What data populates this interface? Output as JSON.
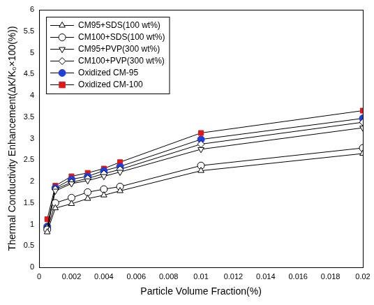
{
  "chart_data": {
    "type": "line",
    "x_label": "Particle Volume Fraction(%)",
    "y_label": "Thermal Conductivity Enhancement(ΔK/K₀×100(%))",
    "x": [
      0.0005,
      0.001,
      0.002,
      0.003,
      0.004,
      0.005,
      0.01,
      0.02
    ],
    "series": [
      {
        "name": "CM95+SDS(100 wt%)",
        "color": "#000000",
        "marker": "open_triangle",
        "values": [
          0.82,
          1.38,
          1.48,
          1.6,
          1.68,
          1.78,
          2.25,
          2.65
        ]
      },
      {
        "name": "CM100+SDS(100 wt%)",
        "color": "#000000",
        "marker": "open_circle",
        "values": [
          0.88,
          1.5,
          1.62,
          1.75,
          1.82,
          1.88,
          2.37,
          2.78
        ]
      },
      {
        "name": "CM95+PVP(300 wt%)",
        "color": "#000000",
        "marker": "open_triangle_down",
        "values": [
          0.9,
          1.78,
          1.95,
          2.02,
          2.12,
          2.22,
          2.75,
          3.25
        ]
      },
      {
        "name": "CM100+PVP(300 wt%)",
        "color": "#000000",
        "marker": "open_diamond",
        "values": [
          0.92,
          1.82,
          1.98,
          2.07,
          2.18,
          2.28,
          2.87,
          3.38
        ]
      },
      {
        "name": "Oxidized CM-95",
        "color": "#1f3fd6",
        "marker": "circle",
        "values": [
          0.95,
          1.85,
          2.05,
          2.12,
          2.25,
          2.35,
          2.98,
          3.47
        ]
      },
      {
        "name": "Oxidized CM-100",
        "color": "#e01818",
        "marker": "square",
        "values": [
          1.12,
          1.9,
          2.12,
          2.2,
          2.3,
          2.45,
          3.13,
          3.65
        ]
      }
    ],
    "xlim": [
      0,
      0.02
    ],
    "xticks": [
      0,
      0.002,
      0.004,
      0.006,
      0.008,
      0.01,
      0.012,
      0.014,
      0.016,
      0.018,
      0.02
    ],
    "ylim": [
      0,
      6
    ],
    "yticks": [
      0,
      0.5,
      1,
      1.5,
      2,
      2.5,
      3,
      3.5,
      4,
      4.5,
      5,
      5.5,
      6
    ],
    "grid": false,
    "legend": "upper left"
  }
}
